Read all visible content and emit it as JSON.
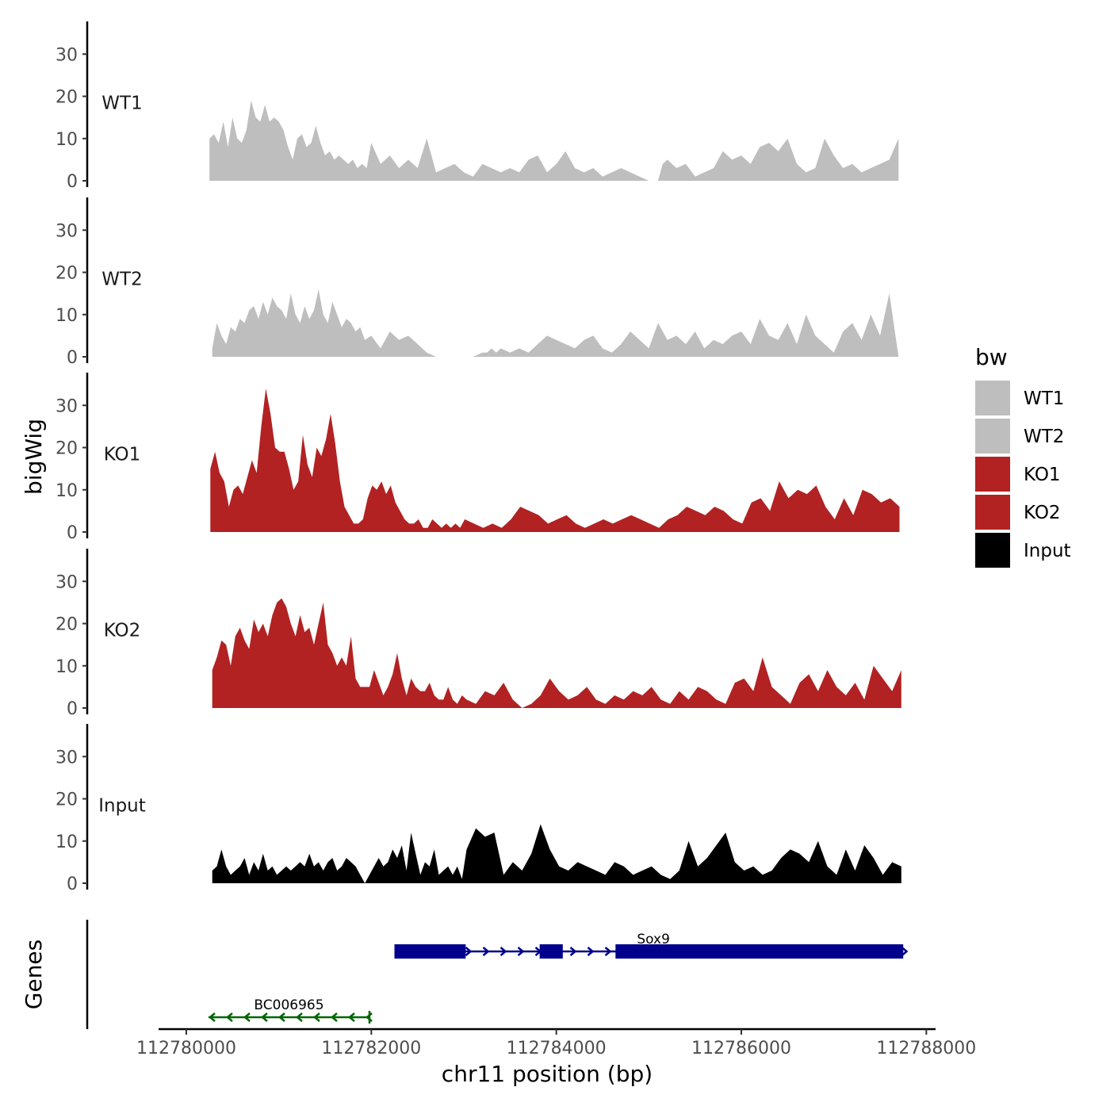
{
  "chart_data": {
    "type": "area",
    "y_axis_title": "bigWig",
    "genes_axis_title": "Genes",
    "xlabel": "chr11 position (bp)",
    "xlim": [
      112779700,
      112788100
    ],
    "x_ticks": [
      112780000,
      112782000,
      112784000,
      112786000,
      112788000
    ],
    "x_tick_labels": [
      "112780000",
      "112782000",
      "112784000",
      "112786000",
      "112788000"
    ],
    "ylim": [
      0,
      37
    ],
    "y_ticks": [
      0,
      10,
      20,
      30
    ],
    "y_tick_labels": [
      "0",
      "10",
      "20",
      "30"
    ],
    "grid": false,
    "legend": {
      "title": "bw",
      "position": "right",
      "entries": [
        {
          "label": "WT1",
          "color": "#bebebe"
        },
        {
          "label": "WT2",
          "color": "#bebebe"
        },
        {
          "label": "KO1",
          "color": "#b22222"
        },
        {
          "label": "KO2",
          "color": "#b22222"
        },
        {
          "label": "Input",
          "color": "#000000"
        }
      ]
    },
    "series": [
      {
        "name": "WT1",
        "color": "#bebebe",
        "x": [
          112780250,
          112780300,
          112780350,
          112780400,
          112780450,
          112780500,
          112780550,
          112780600,
          112780650,
          112780700,
          112780750,
          112780800,
          112780850,
          112780900,
          112780950,
          112781000,
          112781050,
          112781100,
          112781150,
          112781200,
          112781250,
          112781300,
          112781350,
          112781400,
          112781450,
          112781500,
          112781550,
          112781600,
          112781650,
          112781700,
          112781750,
          112781800,
          112781850,
          112781900,
          112781950,
          112782000,
          112782100,
          112782200,
          112782300,
          112782400,
          112782500,
          112782600,
          112782700,
          112782800,
          112782900,
          112783000,
          112783100,
          112783200,
          112783300,
          112783400,
          112783500,
          112783600,
          112783700,
          112783800,
          112783900,
          112784000,
          112784100,
          112784200,
          112784300,
          112784400,
          112784500,
          112784600,
          112784700,
          112784800,
          112784900,
          112785000,
          112785050,
          112785100,
          112785150,
          112785200,
          112785300,
          112785400,
          112785500,
          112785600,
          112785700,
          112785800,
          112785900,
          112786000,
          112786100,
          112786200,
          112786300,
          112786400,
          112786500,
          112786600,
          112786700,
          112786800,
          112786900,
          112787000,
          112787100,
          112787200,
          112787300,
          112787400,
          112787500,
          112787600,
          112787700
        ],
        "values": [
          10,
          11,
          9,
          14,
          8,
          15,
          10,
          9,
          12,
          19,
          15,
          14,
          18,
          14,
          15,
          14,
          12,
          8,
          5,
          10,
          11,
          8,
          9,
          13,
          9,
          6,
          7,
          5,
          6,
          5,
          4,
          5,
          3,
          4,
          3,
          9,
          4,
          6,
          3,
          5,
          3,
          10,
          2,
          3,
          4,
          2,
          1,
          4,
          3,
          2,
          3,
          2,
          5,
          6,
          2,
          4,
          7,
          3,
          2,
          3,
          1,
          2,
          3,
          2,
          1,
          0,
          0,
          0,
          4,
          5,
          3,
          4,
          1,
          2,
          3,
          7,
          5,
          6,
          4,
          8,
          9,
          7,
          10,
          4,
          2,
          3,
          10,
          6,
          3,
          4,
          2,
          3,
          4,
          5,
          10
        ]
      },
      {
        "name": "WT2",
        "color": "#bebebe",
        "x": [
          112780280,
          112780330,
          112780380,
          112780430,
          112780480,
          112780530,
          112780580,
          112780630,
          112780680,
          112780730,
          112780780,
          112780830,
          112780880,
          112780930,
          112780980,
          112781030,
          112781080,
          112781130,
          112781180,
          112781230,
          112781280,
          112781330,
          112781380,
          112781430,
          112781480,
          112781530,
          112781580,
          112781630,
          112781680,
          112781730,
          112781780,
          112781830,
          112781880,
          112781930,
          112782000,
          112782100,
          112782200,
          112782300,
          112782400,
          112782500,
          112782600,
          112782700,
          112782800,
          112782900,
          112783000,
          112783100,
          112783200,
          112783250,
          112783300,
          112783350,
          112783400,
          112783500,
          112783600,
          112783700,
          112783800,
          112783900,
          112784000,
          112784100,
          112784200,
          112784300,
          112784400,
          112784500,
          112784600,
          112784700,
          112784800,
          112784900,
          112785000,
          112785100,
          112785200,
          112785300,
          112785400,
          112785500,
          112785600,
          112785700,
          112785800,
          112785900,
          112786000,
          112786100,
          112786200,
          112786300,
          112786400,
          112786500,
          112786600,
          112786700,
          112786800,
          112786900,
          112787000,
          112787100,
          112787200,
          112787300,
          112787400,
          112787500,
          112787600,
          112787700
        ],
        "values": [
          2,
          8,
          5,
          3,
          7,
          6,
          9,
          8,
          11,
          12,
          9,
          13,
          10,
          14,
          12,
          11,
          9,
          15,
          10,
          8,
          12,
          9,
          11,
          16,
          10,
          8,
          13,
          10,
          7,
          9,
          8,
          6,
          7,
          4,
          5,
          2,
          6,
          4,
          5,
          3,
          1,
          0,
          0,
          0,
          0,
          0,
          1,
          1,
          2,
          1,
          2,
          1,
          2,
          1,
          3,
          5,
          4,
          3,
          2,
          4,
          5,
          2,
          1,
          3,
          6,
          4,
          2,
          8,
          4,
          5,
          3,
          6,
          2,
          4,
          3,
          5,
          6,
          3,
          9,
          5,
          4,
          8,
          3,
          10,
          5,
          3,
          1,
          6,
          8,
          4,
          10,
          5,
          15,
          0
        ]
      },
      {
        "name": "KO1",
        "color": "#b22222",
        "x": [
          112780260,
          112780310,
          112780360,
          112780410,
          112780460,
          112780510,
          112780560,
          112780610,
          112780660,
          112780710,
          112780760,
          112780810,
          112780860,
          112780910,
          112780960,
          112781010,
          112781060,
          112781110,
          112781160,
          112781210,
          112781260,
          112781310,
          112781360,
          112781410,
          112781460,
          112781510,
          112781560,
          112781610,
          112781660,
          112781710,
          112781760,
          112781810,
          112781860,
          112781910,
          112781960,
          112782010,
          112782060,
          112782110,
          112782160,
          112782210,
          112782260,
          112782310,
          112782360,
          112782410,
          112782460,
          112782510,
          112782560,
          112782610,
          112782660,
          112782710,
          112782760,
          112782810,
          112782860,
          112782910,
          112782960,
          112783010,
          112783110,
          112783210,
          112783310,
          112783410,
          112783510,
          112783610,
          112783710,
          112783810,
          112783910,
          112784010,
          112784110,
          112784210,
          112784310,
          112784410,
          112784510,
          112784610,
          112784710,
          112784810,
          112784910,
          112785010,
          112785110,
          112785210,
          112785310,
          112785410,
          112785510,
          112785610,
          112785710,
          112785810,
          112785910,
          112786010,
          112786110,
          112786210,
          112786310,
          112786410,
          112786510,
          112786610,
          112786710,
          112786810,
          112786910,
          112787010,
          112787110,
          112787210,
          112787310,
          112787410,
          112787510,
          112787610,
          112787710
        ],
        "values": [
          15,
          19,
          14,
          12,
          6,
          10,
          11,
          9,
          13,
          17,
          14,
          25,
          34,
          28,
          20,
          19,
          19,
          15,
          10,
          12,
          23,
          16,
          13,
          20,
          18,
          22,
          28,
          21,
          12,
          6,
          4,
          2,
          2,
          3,
          8,
          11,
          10,
          12,
          9,
          11,
          7,
          5,
          3,
          2,
          2,
          3,
          1,
          1,
          3,
          2,
          1,
          2,
          1,
          2,
          1,
          3,
          2,
          1,
          2,
          1,
          3,
          6,
          5,
          4,
          2,
          3,
          4,
          2,
          1,
          2,
          3,
          2,
          3,
          4,
          3,
          2,
          1,
          3,
          4,
          6,
          5,
          4,
          6,
          5,
          3,
          2,
          7,
          8,
          5,
          12,
          8,
          10,
          9,
          11,
          6,
          3,
          8,
          4,
          10,
          9,
          7,
          8,
          6
        ]
      },
      {
        "name": "KO2",
        "color": "#b22222",
        "x": [
          112780280,
          112780330,
          112780380,
          112780430,
          112780480,
          112780530,
          112780580,
          112780630,
          112780680,
          112780730,
          112780780,
          112780830,
          112780880,
          112780930,
          112780980,
          112781030,
          112781080,
          112781130,
          112781180,
          112781230,
          112781280,
          112781330,
          112781380,
          112781430,
          112781480,
          112781530,
          112781580,
          112781630,
          112781680,
          112781730,
          112781780,
          112781830,
          112781880,
          112781930,
          112781980,
          112782030,
          112782080,
          112782130,
          112782180,
          112782230,
          112782280,
          112782330,
          112782380,
          112782430,
          112782480,
          112782530,
          112782580,
          112782630,
          112782680,
          112782730,
          112782780,
          112782830,
          112782880,
          112782930,
          112782980,
          112783030,
          112783130,
          112783230,
          112783330,
          112783430,
          112783530,
          112783630,
          112783730,
          112783830,
          112783930,
          112784030,
          112784130,
          112784230,
          112784330,
          112784430,
          112784530,
          112784630,
          112784730,
          112784830,
          112784930,
          112785030,
          112785130,
          112785230,
          112785330,
          112785430,
          112785530,
          112785630,
          112785730,
          112785830,
          112785930,
          112786030,
          112786130,
          112786230,
          112786330,
          112786430,
          112786530,
          112786630,
          112786730,
          112786830,
          112786930,
          112787030,
          112787130,
          112787230,
          112787330,
          112787430,
          112787530,
          112787630,
          112787730
        ],
        "values": [
          9,
          12,
          16,
          15,
          10,
          17,
          19,
          16,
          14,
          21,
          18,
          20,
          17,
          22,
          25,
          26,
          24,
          20,
          17,
          22,
          18,
          19,
          15,
          20,
          25,
          15,
          13,
          10,
          12,
          10,
          17,
          7,
          5,
          5,
          5,
          9,
          6,
          3,
          5,
          8,
          13,
          7,
          3,
          7,
          5,
          4,
          4,
          6,
          3,
          2,
          2,
          5,
          2,
          1,
          3,
          2,
          1,
          4,
          3,
          6,
          2,
          0,
          1,
          3,
          7,
          4,
          2,
          3,
          5,
          2,
          1,
          3,
          2,
          4,
          3,
          5,
          2,
          1,
          4,
          2,
          5,
          4,
          2,
          1,
          6,
          7,
          4,
          12,
          5,
          3,
          1,
          6,
          8,
          4,
          9,
          5,
          3,
          6,
          2,
          10,
          7,
          4,
          9
        ]
      },
      {
        "name": "Input",
        "color": "#000000",
        "x": [
          112780280,
          112780330,
          112780380,
          112780430,
          112780480,
          112780530,
          112780580,
          112780630,
          112780680,
          112780730,
          112780780,
          112780830,
          112780880,
          112780930,
          112780980,
          112781030,
          112781080,
          112781130,
          112781180,
          112781230,
          112781280,
          112781330,
          112781380,
          112781430,
          112781480,
          112781530,
          112781580,
          112781630,
          112781680,
          112781730,
          112781780,
          112781830,
          112781880,
          112781930,
          112781980,
          112782030,
          112782080,
          112782130,
          112782180,
          112782230,
          112782280,
          112782330,
          112782380,
          112782430,
          112782480,
          112782530,
          112782580,
          112782630,
          112782680,
          112782730,
          112782780,
          112782830,
          112782880,
          112782930,
          112782980,
          112783030,
          112783130,
          112783230,
          112783330,
          112783430,
          112783530,
          112783630,
          112783730,
          112783830,
          112783930,
          112784030,
          112784130,
          112784230,
          112784330,
          112784430,
          112784530,
          112784630,
          112784730,
          112784830,
          112784930,
          112785030,
          112785130,
          112785230,
          112785330,
          112785430,
          112785530,
          112785630,
          112785730,
          112785830,
          112785930,
          112786030,
          112786130,
          112786230,
          112786330,
          112786430,
          112786530,
          112786630,
          112786730,
          112786830,
          112786930,
          112787030,
          112787130,
          112787230,
          112787330,
          112787430,
          112787530,
          112787630,
          112787730
        ],
        "values": [
          3,
          4,
          8,
          4,
          2,
          3,
          4,
          6,
          2,
          5,
          3,
          7,
          3,
          4,
          2,
          3,
          4,
          3,
          4,
          5,
          4,
          7,
          4,
          5,
          3,
          5,
          6,
          3,
          4,
          6,
          5,
          4,
          2,
          0,
          2,
          4,
          6,
          4,
          5,
          8,
          6,
          9,
          3,
          12,
          7,
          2,
          5,
          4,
          8,
          2,
          3,
          4,
          2,
          4,
          1,
          8,
          13,
          11,
          12,
          2,
          5,
          3,
          7,
          14,
          8,
          4,
          3,
          5,
          4,
          3,
          2,
          5,
          4,
          2,
          3,
          4,
          2,
          1,
          3,
          10,
          4,
          6,
          9,
          12,
          5,
          3,
          4,
          2,
          3,
          6,
          8,
          7,
          5,
          10,
          4,
          2,
          8,
          3,
          9,
          6,
          2,
          5,
          4
        ]
      }
    ],
    "genes": [
      {
        "name": "Sox9",
        "color": "#00008b",
        "strand": "+",
        "start": 112782250,
        "end": 112787750,
        "exons": [
          [
            112782250,
            112783020
          ],
          [
            112783820,
            112784070
          ],
          [
            112784640,
            112787750
          ]
        ]
      },
      {
        "name": "BC006965",
        "color": "#006400",
        "strand": "-",
        "start": 112780240,
        "end": 112781980,
        "exons": []
      }
    ]
  }
}
